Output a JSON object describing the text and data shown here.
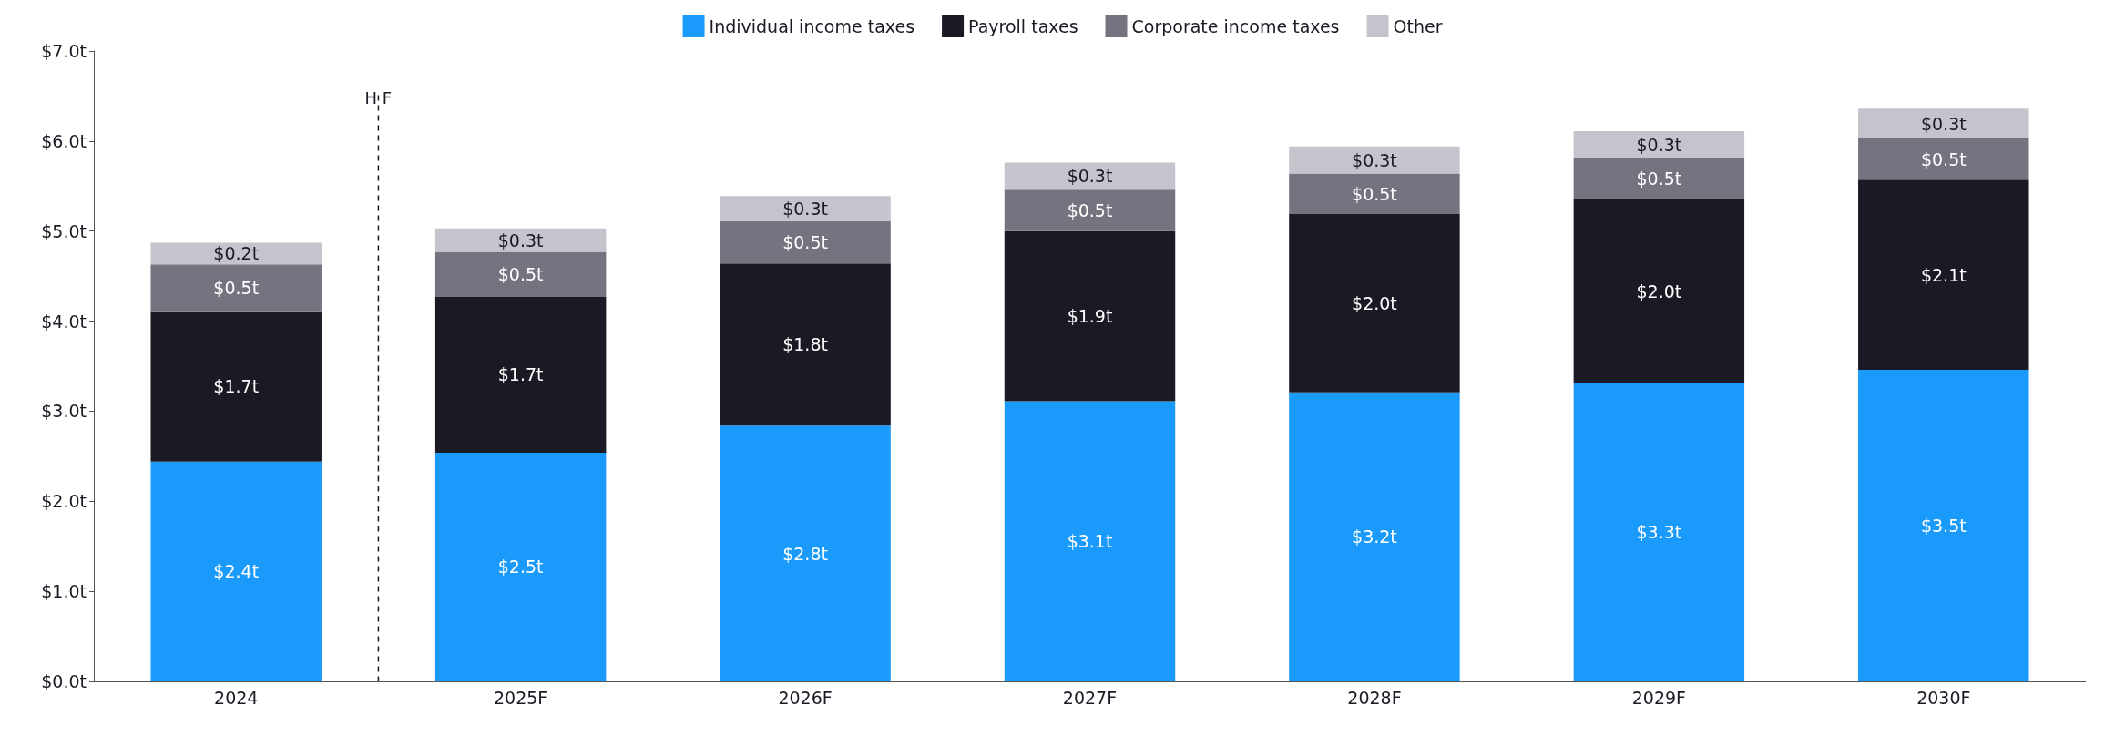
{
  "chart_data": {
    "type": "bar",
    "stacked": true,
    "categories": [
      "2024",
      "2025F",
      "2026F",
      "2027F",
      "2028F",
      "2029F",
      "2030F"
    ],
    "series": [
      {
        "name": "Individual income taxes",
        "color": "#1a9afa",
        "values": [
          2.44,
          2.54,
          2.84,
          3.11,
          3.21,
          3.31,
          3.46
        ],
        "value_labels": [
          "$2.4t",
          "$2.5t",
          "$2.8t",
          "$3.1t",
          "$3.2t",
          "$3.3t",
          "$3.5t"
        ]
      },
      {
        "name": "Payroll taxes",
        "color": "#1a1a24",
        "values": [
          1.67,
          1.73,
          1.8,
          1.89,
          1.98,
          2.04,
          2.11
        ],
        "value_labels": [
          "$1.7t",
          "$1.7t",
          "$1.8t",
          "$1.9t",
          "$2.0t",
          "$2.0t",
          "$2.1t"
        ]
      },
      {
        "name": "Corporate income taxes",
        "color": "#747480",
        "values": [
          0.52,
          0.5,
          0.47,
          0.46,
          0.45,
          0.46,
          0.46
        ],
        "value_labels": [
          "$0.5t",
          "$0.5t",
          "$0.5t",
          "$0.5t",
          "$0.5t",
          "$0.5t",
          "$0.5t"
        ]
      },
      {
        "name": "Other",
        "color": "#c4c4cd",
        "values": [
          0.24,
          0.26,
          0.28,
          0.3,
          0.3,
          0.3,
          0.33
        ],
        "value_labels": [
          "$0.2t",
          "$0.3t",
          "$0.3t",
          "$0.3t",
          "$0.3t",
          "$0.3t",
          "$0.3t"
        ]
      }
    ],
    "ylim": [
      0,
      7
    ],
    "yticks": [
      {
        "value": 0,
        "label": "$0.0t"
      },
      {
        "value": 1,
        "label": "$1.0t"
      },
      {
        "value": 2,
        "label": "$2.0t"
      },
      {
        "value": 3,
        "label": "$3.0t"
      },
      {
        "value": 4,
        "label": "$4.0t"
      },
      {
        "value": 5,
        "label": "$5.0t"
      },
      {
        "value": 6,
        "label": "$6.0t"
      },
      {
        "value": 7,
        "label": "$7.0t"
      }
    ],
    "annotations": [
      "H F"
    ],
    "legend": "top"
  }
}
